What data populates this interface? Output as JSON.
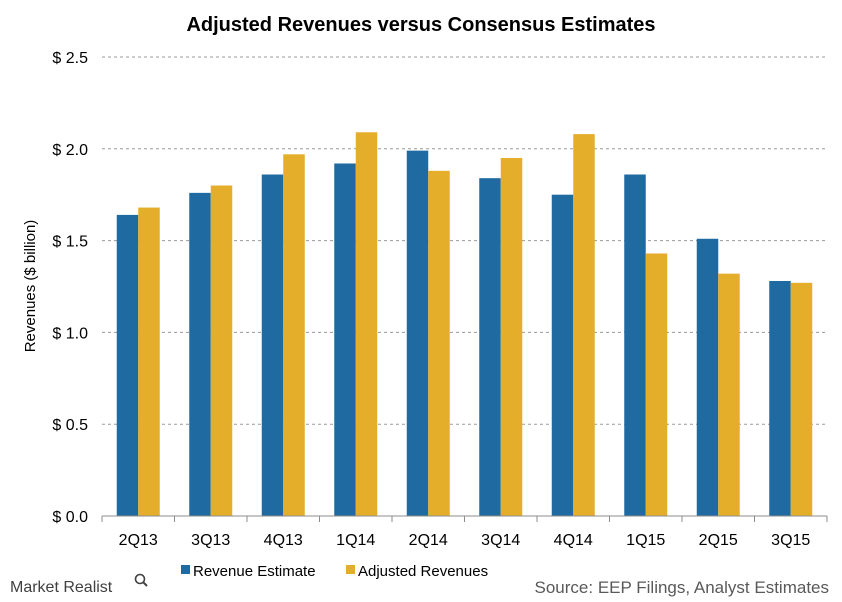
{
  "colors": {
    "revenue_estimate": "#1f6aa0",
    "adjusted_revenues": "#e4ae2b",
    "grid": "#9a9a9a",
    "text": "#000000",
    "source_text": "#595959"
  },
  "brand": {
    "name": "Market Realist",
    "icon": "magnifier-icon"
  },
  "source": "Source: EEP Filings, Analyst Estimates",
  "chart_data": {
    "type": "bar",
    "title": "Adjusted Revenues versus Consensus Estimates",
    "xlabel": "",
    "ylabel": "Revenues ($ billion)",
    "ylim": [
      0,
      2.5
    ],
    "yticks": [
      "$ 0.0",
      "$ 0.5",
      "$ 1.0",
      "$ 1.5",
      "$ 2.0",
      "$ 2.5"
    ],
    "grid": true,
    "legend_position": "bottom",
    "categories": [
      "2Q13",
      "3Q13",
      "4Q13",
      "1Q14",
      "2Q14",
      "3Q14",
      "4Q14",
      "1Q15",
      "2Q15",
      "3Q15"
    ],
    "series": [
      {
        "name": "Revenue Estimate",
        "values": [
          1.64,
          1.76,
          1.86,
          1.92,
          1.99,
          1.84,
          1.75,
          1.86,
          1.51,
          1.28
        ]
      },
      {
        "name": "Adjusted Revenues",
        "values": [
          1.68,
          1.8,
          1.97,
          2.09,
          1.88,
          1.95,
          2.08,
          1.43,
          1.32,
          1.27
        ]
      }
    ]
  }
}
